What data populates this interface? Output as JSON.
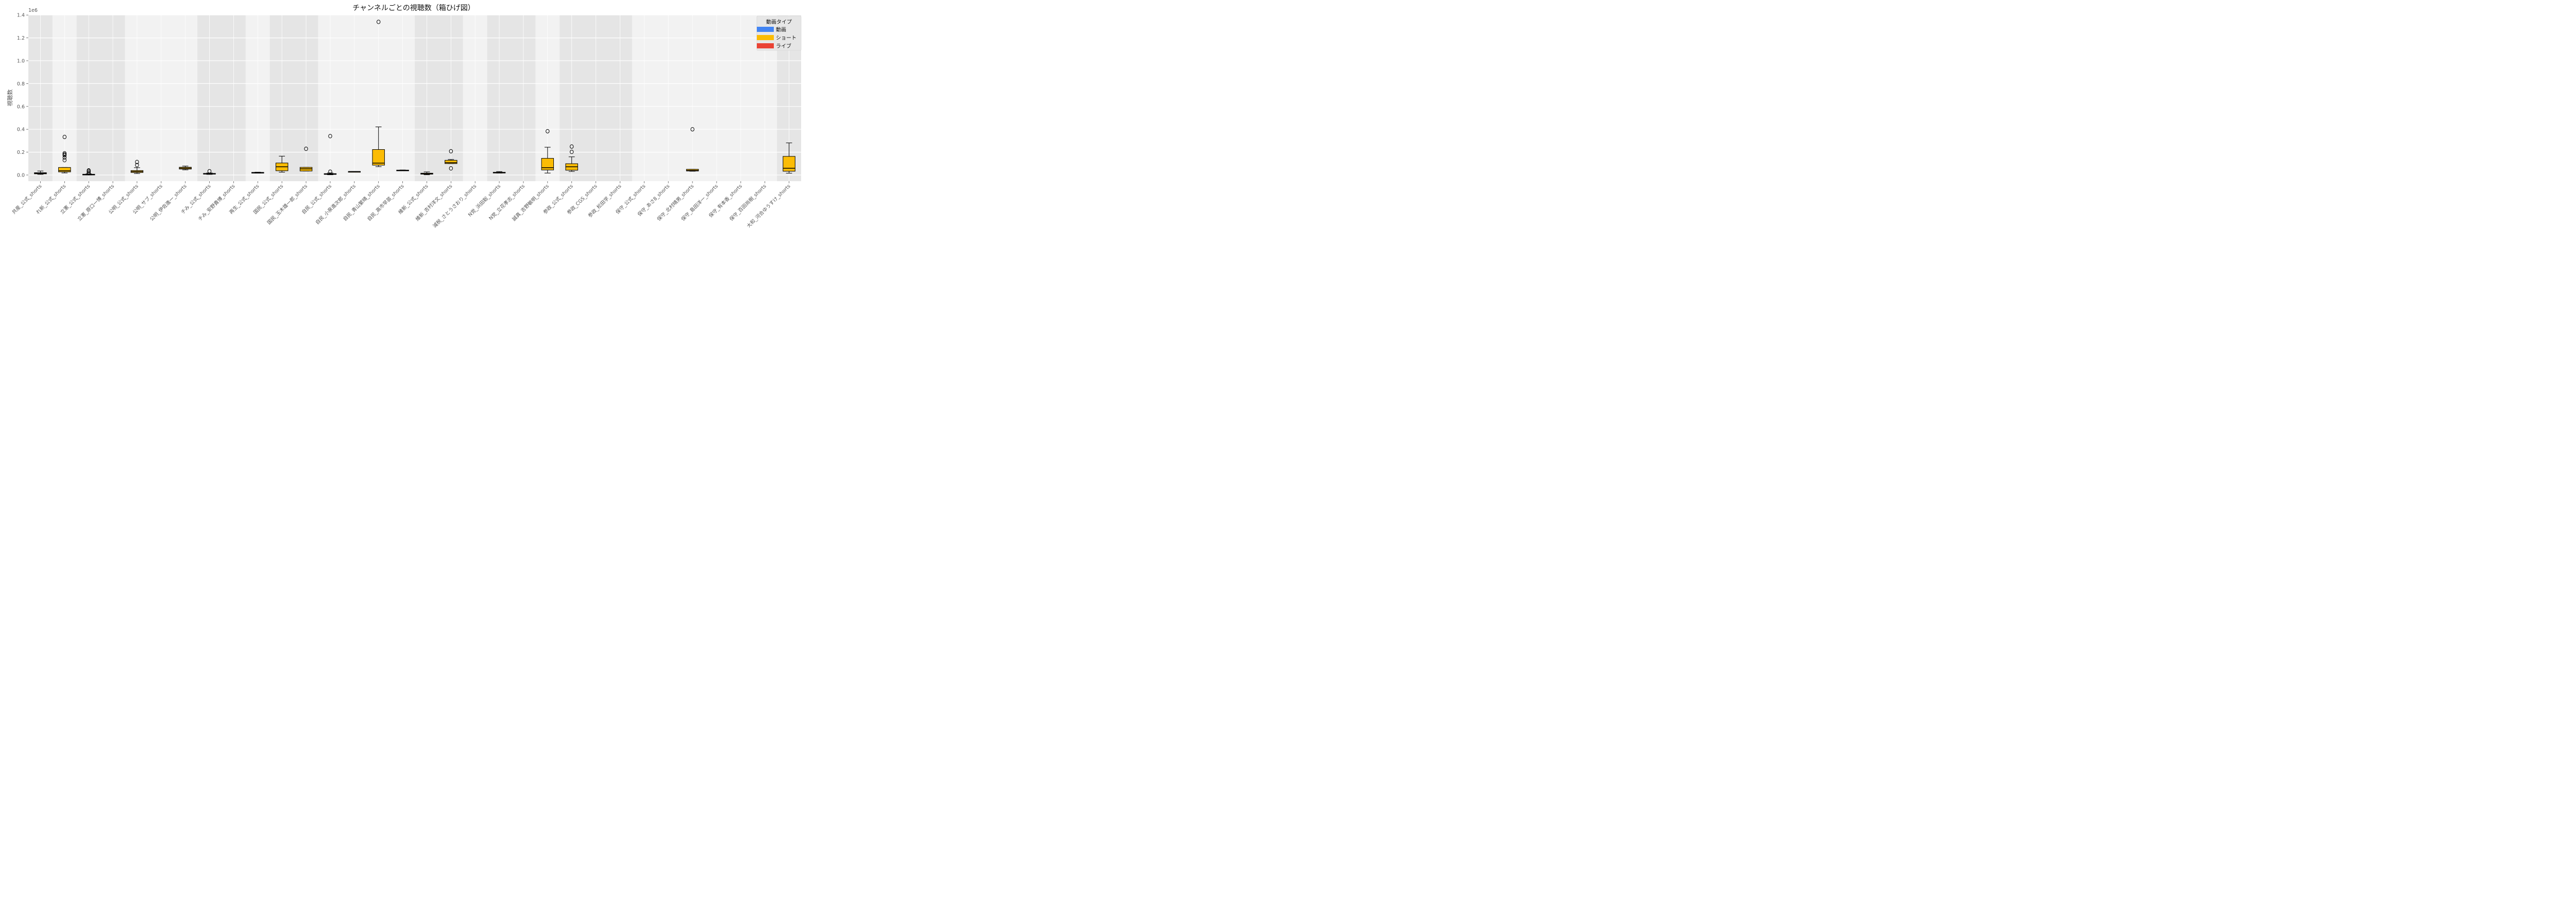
{
  "chart_data": {
    "type": "boxplot",
    "title": "チャンネルごとの視聴数（箱ひげ図）",
    "xlabel": "",
    "ylabel": "視聴数",
    "y_offset_label": "1e6",
    "ylim": [
      -0.05,
      1.4
    ],
    "yticks": [
      0.0,
      0.2,
      0.4,
      0.6,
      0.8,
      1.0,
      1.2,
      1.4
    ],
    "ytick_labels": [
      "0.0",
      "0.2",
      "0.4",
      "0.6",
      "0.8",
      "1.0",
      "1.2",
      "1.4"
    ],
    "grid": true,
    "legend": {
      "title": "動画タイプ",
      "position": "upper right",
      "entries": [
        {
          "label": "動画",
          "color": "#4285F4"
        },
        {
          "label": "ショート",
          "color": "#FBBC05"
        },
        {
          "label": "ライブ",
          "color": "#EA4335"
        }
      ]
    },
    "background_bands": [
      {
        "from": 0,
        "to": 0,
        "shade": "dark"
      },
      {
        "from": 1,
        "to": 1,
        "shade": "light"
      },
      {
        "from": 2,
        "to": 3,
        "shade": "dark"
      },
      {
        "from": 4,
        "to": 6,
        "shade": "light"
      },
      {
        "from": 7,
        "to": 8,
        "shade": "dark"
      },
      {
        "from": 9,
        "to": 9,
        "shade": "light"
      },
      {
        "from": 10,
        "to": 11,
        "shade": "dark"
      },
      {
        "from": 12,
        "to": 15,
        "shade": "light"
      },
      {
        "from": 16,
        "to": 17,
        "shade": "dark"
      },
      {
        "from": 18,
        "to": 18,
        "shade": "light"
      },
      {
        "from": 19,
        "to": 20,
        "shade": "dark"
      },
      {
        "from": 21,
        "to": 21,
        "shade": "light"
      },
      {
        "from": 22,
        "to": 24,
        "shade": "dark"
      },
      {
        "from": 25,
        "to": 30,
        "shade": "light"
      },
      {
        "from": 31,
        "to": 31,
        "shade": "dark"
      }
    ],
    "box_color": "#FBBC05",
    "categories": [
      "共産_公式_shorts",
      "れ新_公式_shorts",
      "立憲_公式_shorts",
      "立憲_原口一博_shorts",
      "公明_公式_shorts",
      "公明_サブ_shorts",
      "公明_伊佐進一_shorts",
      "チみ_公式_shorts",
      "チみ_安野貴博_shorts",
      "再生_公式_shorts",
      "国民_公式_shorts",
      "国民_玉木雄一郎_shorts",
      "自民_公式_shorts",
      "自民_小泉進次郎_shorts",
      "自民_青山繁晴_shorts",
      "自民_高市早苗_shorts",
      "維新_公式_shorts",
      "維新_吉村洋文_shorts",
      "減税_さとうさおり_shorts",
      "N党_浜田聡_shorts",
      "N党_立花孝志_shorts",
      "誠真_吉野敏明_shorts",
      "参政_公式_shorts",
      "参政_CGS_shorts",
      "参政_松田学_shorts",
      "保守_公式_shorts",
      "保守_あさ8_shorts",
      "保守_北村晴男_shorts",
      "保守_島田洋一_shorts",
      "保守_有本香_shorts",
      "保守_百田尚樹_shorts",
      "大和_河合ゆうすけ_shorts"
    ],
    "series": [
      {
        "name": "共産_公式_shorts",
        "whislo": 0.005,
        "q1": 0.01,
        "med": 0.015,
        "q3": 0.02,
        "whishi": 0.035,
        "fliers": []
      },
      {
        "name": "れ新_公式_shorts",
        "whislo": 0.018,
        "q1": 0.027,
        "med": 0.037,
        "q3": 0.066,
        "whishi": 0.066,
        "fliers": [
          0.13,
          0.153,
          0.173,
          0.18,
          0.19,
          0.333
        ]
      },
      {
        "name": "立憲_公式_shorts",
        "whislo": 0.0,
        "q1": 0.002,
        "med": 0.004,
        "q3": 0.007,
        "whishi": 0.01,
        "fliers": [
          0.015,
          0.025,
          0.035,
          0.04
        ]
      },
      {
        "name": "立憲_原口一博_shorts",
        "empty": true
      },
      {
        "name": "公明_公式_shorts",
        "whislo": 0.013,
        "q1": 0.022,
        "med": 0.03,
        "q3": 0.039,
        "whishi": 0.064,
        "fliers": [
          0.087,
          0.114
        ]
      },
      {
        "name": "公明_サブ_shorts",
        "empty": true
      },
      {
        "name": "公明_伊佐進一_shorts",
        "whislo": 0.045,
        "q1": 0.052,
        "med": 0.06,
        "q3": 0.068,
        "whishi": 0.078,
        "fliers": []
      },
      {
        "name": "チみ_公式_shorts",
        "whislo": 0.005,
        "q1": 0.008,
        "med": 0.011,
        "q3": 0.014,
        "whishi": 0.018,
        "fliers": [
          0.033
        ]
      },
      {
        "name": "チみ_安野貴博_shorts",
        "empty": true
      },
      {
        "name": "再生_公式_shorts",
        "whislo": 0.016,
        "q1": 0.018,
        "med": 0.02,
        "q3": 0.023,
        "whishi": 0.025,
        "fliers": []
      },
      {
        "name": "国民_公式_shorts",
        "whislo": 0.025,
        "q1": 0.037,
        "med": 0.072,
        "q3": 0.105,
        "whishi": 0.165,
        "fliers": []
      },
      {
        "name": "国民_玉木雄一郎_shorts",
        "whislo": 0.035,
        "q1": 0.035,
        "med": 0.054,
        "q3": 0.067,
        "whishi": 0.067,
        "fliers": [
          0.229
        ]
      },
      {
        "name": "自民_公式_shorts",
        "whislo": 0.002,
        "q1": 0.005,
        "med": 0.008,
        "q3": 0.012,
        "whishi": 0.018,
        "fliers": [
          0.029,
          0.34
        ]
      },
      {
        "name": "自民_小泉進次郎_shorts",
        "whislo": 0.029,
        "q1": 0.03,
        "med": 0.03,
        "q3": 0.031,
        "whishi": 0.031,
        "fliers": []
      },
      {
        "name": "自民_青山繁晴_shorts",
        "whislo": 0.073,
        "q1": 0.086,
        "med": 0.104,
        "q3": 0.223,
        "whishi": 0.421,
        "fliers": [
          1.34
        ]
      },
      {
        "name": "自民_高市早苗_shorts",
        "whislo": 0.038,
        "q1": 0.039,
        "med": 0.041,
        "q3": 0.043,
        "whishi": 0.044,
        "fliers": []
      },
      {
        "name": "維新_公式_shorts",
        "whislo": 0.002,
        "q1": 0.007,
        "med": 0.013,
        "q3": 0.016,
        "whishi": 0.027,
        "fliers": []
      },
      {
        "name": "維新_吉村洋文_shorts",
        "whislo": 0.1,
        "q1": 0.1,
        "med": 0.108,
        "q3": 0.129,
        "whishi": 0.136,
        "fliers": [
          0.058,
          0.208
        ]
      },
      {
        "name": "減税_さとうさおり_shorts",
        "empty": true
      },
      {
        "name": "N党_浜田聡_shorts",
        "whislo": 0.017,
        "q1": 0.019,
        "med": 0.022,
        "q3": 0.024,
        "whishi": 0.03,
        "fliers": []
      },
      {
        "name": "N党_立花孝志_shorts",
        "empty": true
      },
      {
        "name": "誠真_吉野敏明_shorts",
        "whislo": 0.017,
        "q1": 0.044,
        "med": 0.064,
        "q3": 0.146,
        "whishi": 0.243,
        "fliers": [
          0.383
        ]
      },
      {
        "name": "参政_公式_shorts",
        "whislo": 0.031,
        "q1": 0.042,
        "med": 0.072,
        "q3": 0.099,
        "whishi": 0.159,
        "fliers": [
          0.202,
          0.249
        ]
      },
      {
        "name": "参政_CGS_shorts",
        "empty": true
      },
      {
        "name": "参政_松田学_shorts",
        "empty": true
      },
      {
        "name": "保守_公式_shorts",
        "empty": true
      },
      {
        "name": "保守_あさ8_shorts",
        "empty": true
      },
      {
        "name": "保守_北村晴男_shorts",
        "whislo": 0.033,
        "q1": 0.035,
        "med": 0.04,
        "q3": 0.05,
        "whishi": 0.05,
        "fliers": [
          0.4
        ]
      },
      {
        "name": "保守_島田洋一_shorts",
        "empty": true
      },
      {
        "name": "保守_有本香_shorts",
        "empty": true
      },
      {
        "name": "保守_百田尚樹_shorts",
        "empty": true
      },
      {
        "name": "大和_河合ゆうすけ_shorts",
        "whislo": 0.016,
        "q1": 0.033,
        "med": 0.059,
        "q3": 0.163,
        "whishi": 0.281,
        "fliers": []
      }
    ]
  }
}
